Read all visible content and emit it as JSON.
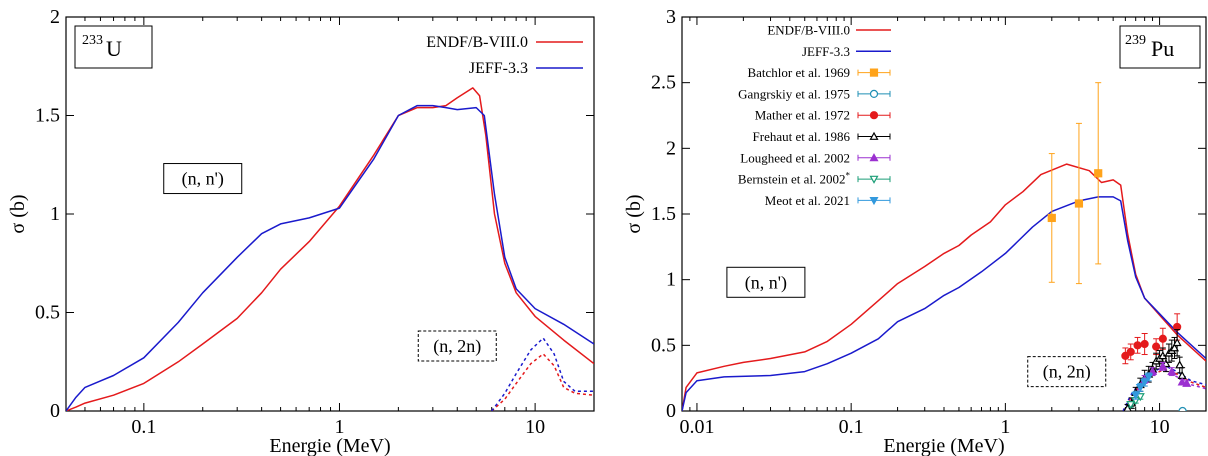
{
  "chart_data": [
    {
      "type": "line",
      "isotope": {
        "mass": "233",
        "symbol": "U"
      },
      "xlabel": "Energie (MeV)",
      "ylabel": "σ (b)",
      "xscale": "log",
      "xlim": [
        0.04,
        20
      ],
      "ylim": [
        0,
        2
      ],
      "xticks": [
        {
          "v": 0.1,
          "t": "0.1"
        },
        {
          "v": 1,
          "t": "1"
        },
        {
          "v": 10,
          "t": "10"
        }
      ],
      "yticks": [
        {
          "v": 0,
          "t": "0"
        },
        {
          "v": 0.5,
          "t": "0.5"
        },
        {
          "v": 1,
          "t": "1"
        },
        {
          "v": 1.5,
          "t": "1.5"
        },
        {
          "v": 2,
          "t": "2"
        }
      ],
      "legend_position": "top-right",
      "labels": [
        {
          "text": "(n, n')",
          "x": 0.2,
          "y": 1.18,
          "dashed": false
        },
        {
          "text": "(n, 2n)",
          "x": 4.0,
          "y": 0.33,
          "dashed": true
        }
      ],
      "series": [
        {
          "name": "ENDF/B-VIII.0",
          "color": "#e41a1c",
          "dash": false,
          "points": [
            [
              0.04,
              0
            ],
            [
              0.045,
              0.02
            ],
            [
              0.05,
              0.04
            ],
            [
              0.07,
              0.08
            ],
            [
              0.1,
              0.14
            ],
            [
              0.15,
              0.25
            ],
            [
              0.2,
              0.34
            ],
            [
              0.3,
              0.47
            ],
            [
              0.4,
              0.6
            ],
            [
              0.5,
              0.72
            ],
            [
              0.7,
              0.86
            ],
            [
              1.0,
              1.04
            ],
            [
              1.5,
              1.3
            ],
            [
              2.0,
              1.5
            ],
            [
              2.5,
              1.54
            ],
            [
              3.0,
              1.54
            ],
            [
              3.5,
              1.55
            ],
            [
              4.0,
              1.59
            ],
            [
              4.8,
              1.64
            ],
            [
              5.2,
              1.6
            ],
            [
              5.6,
              1.4
            ],
            [
              6.2,
              1.0
            ],
            [
              7.0,
              0.75
            ],
            [
              8.0,
              0.6
            ],
            [
              10.0,
              0.48
            ],
            [
              14.0,
              0.36
            ],
            [
              20.0,
              0.24
            ]
          ]
        },
        {
          "name": "JEFF-3.3",
          "color": "#1a1acc",
          "dash": false,
          "points": [
            [
              0.04,
              0
            ],
            [
              0.045,
              0.07
            ],
            [
              0.05,
              0.12
            ],
            [
              0.07,
              0.18
            ],
            [
              0.1,
              0.27
            ],
            [
              0.15,
              0.45
            ],
            [
              0.2,
              0.6
            ],
            [
              0.3,
              0.78
            ],
            [
              0.4,
              0.9
            ],
            [
              0.5,
              0.95
            ],
            [
              0.7,
              0.98
            ],
            [
              1.0,
              1.03
            ],
            [
              1.5,
              1.28
            ],
            [
              2.0,
              1.5
            ],
            [
              2.5,
              1.55
            ],
            [
              3.0,
              1.55
            ],
            [
              3.5,
              1.54
            ],
            [
              4.0,
              1.53
            ],
            [
              5.0,
              1.54
            ],
            [
              5.5,
              1.5
            ],
            [
              6.2,
              1.1
            ],
            [
              7.0,
              0.78
            ],
            [
              8.0,
              0.62
            ],
            [
              10.0,
              0.52
            ],
            [
              14.0,
              0.44
            ],
            [
              20.0,
              0.34
            ]
          ]
        },
        {
          "name": "",
          "color": "#e41a1c",
          "dash": true,
          "points": [
            [
              6.0,
              0
            ],
            [
              7.0,
              0.06
            ],
            [
              8.0,
              0.14
            ],
            [
              9.5,
              0.24
            ],
            [
              11.0,
              0.29
            ],
            [
              12.5,
              0.23
            ],
            [
              14.0,
              0.12
            ],
            [
              16.0,
              0.09
            ],
            [
              20.0,
              0.08
            ]
          ]
        },
        {
          "name": "",
          "color": "#1a1acc",
          "dash": true,
          "points": [
            [
              6.0,
              0
            ],
            [
              7.0,
              0.09
            ],
            [
              8.0,
              0.19
            ],
            [
              9.5,
              0.31
            ],
            [
              11.0,
              0.37
            ],
            [
              12.5,
              0.29
            ],
            [
              14.0,
              0.15
            ],
            [
              16.0,
              0.1
            ],
            [
              20.0,
              0.1
            ]
          ]
        }
      ]
    },
    {
      "type": "line",
      "isotope": {
        "mass": "239",
        "symbol": "Pu"
      },
      "xlabel": "Energie (MeV)",
      "ylabel": "σ (b)",
      "xscale": "log",
      "xlim": [
        0.008,
        20
      ],
      "ylim": [
        0,
        3
      ],
      "xticks": [
        {
          "v": 0.01,
          "t": "0.01"
        },
        {
          "v": 0.1,
          "t": "0.1"
        },
        {
          "v": 1,
          "t": "1"
        },
        {
          "v": 10,
          "t": "10"
        }
      ],
      "yticks": [
        {
          "v": 0,
          "t": "0"
        },
        {
          "v": 0.5,
          "t": "0.5"
        },
        {
          "v": 1,
          "t": "1"
        },
        {
          "v": 1.5,
          "t": "1.5"
        },
        {
          "v": 2,
          "t": "2"
        },
        {
          "v": 2.5,
          "t": "2.5"
        },
        {
          "v": 3,
          "t": "3"
        }
      ],
      "legend_position": "top-left",
      "labels": [
        {
          "text": "(n, n')",
          "x": 0.028,
          "y": 0.98,
          "dashed": false
        },
        {
          "text": "(n, 2n)",
          "x": 2.5,
          "y": 0.3,
          "dashed": true
        }
      ],
      "series": [
        {
          "name": "ENDF/B-VIII.0",
          "color": "#e41a1c",
          "dash": false,
          "points": [
            [
              0.008,
              0
            ],
            [
              0.0085,
              0.18
            ],
            [
              0.01,
              0.29
            ],
            [
              0.015,
              0.34
            ],
            [
              0.02,
              0.37
            ],
            [
              0.03,
              0.4
            ],
            [
              0.05,
              0.45
            ],
            [
              0.07,
              0.53
            ],
            [
              0.1,
              0.66
            ],
            [
              0.15,
              0.84
            ],
            [
              0.2,
              0.97
            ],
            [
              0.3,
              1.1
            ],
            [
              0.4,
              1.2
            ],
            [
              0.5,
              1.26
            ],
            [
              0.6,
              1.34
            ],
            [
              0.8,
              1.44
            ],
            [
              1.0,
              1.57
            ],
            [
              1.3,
              1.67
            ],
            [
              1.7,
              1.8
            ],
            [
              2.5,
              1.88
            ],
            [
              3.5,
              1.83
            ],
            [
              4.2,
              1.74
            ],
            [
              5.0,
              1.76
            ],
            [
              5.6,
              1.72
            ],
            [
              6.2,
              1.35
            ],
            [
              7.0,
              1.04
            ],
            [
              8.0,
              0.86
            ],
            [
              10.0,
              0.73
            ],
            [
              13.0,
              0.58
            ],
            [
              20.0,
              0.38
            ]
          ]
        },
        {
          "name": "JEFF-3.3",
          "color": "#1a1acc",
          "dash": false,
          "points": [
            [
              0.008,
              0
            ],
            [
              0.0085,
              0.14
            ],
            [
              0.01,
              0.23
            ],
            [
              0.015,
              0.26
            ],
            [
              0.03,
              0.27
            ],
            [
              0.05,
              0.3
            ],
            [
              0.07,
              0.36
            ],
            [
              0.1,
              0.44
            ],
            [
              0.15,
              0.55
            ],
            [
              0.2,
              0.68
            ],
            [
              0.3,
              0.78
            ],
            [
              0.4,
              0.88
            ],
            [
              0.5,
              0.94
            ],
            [
              0.7,
              1.06
            ],
            [
              1.0,
              1.2
            ],
            [
              1.5,
              1.4
            ],
            [
              2.0,
              1.52
            ],
            [
              3.0,
              1.6
            ],
            [
              4.0,
              1.63
            ],
            [
              5.0,
              1.63
            ],
            [
              5.6,
              1.6
            ],
            [
              6.2,
              1.3
            ],
            [
              7.0,
              1.02
            ],
            [
              8.0,
              0.86
            ],
            [
              10.0,
              0.74
            ],
            [
              13.0,
              0.6
            ],
            [
              20.0,
              0.4
            ]
          ]
        },
        {
          "name": "",
          "color": "#e41a1c",
          "dash": true,
          "points": [
            [
              5.8,
              0
            ],
            [
              6.5,
              0.1
            ],
            [
              7.5,
              0.2
            ],
            [
              9.0,
              0.28
            ],
            [
              11.0,
              0.32
            ],
            [
              13.0,
              0.28
            ],
            [
              16.0,
              0.22
            ],
            [
              20.0,
              0.18
            ]
          ]
        },
        {
          "name": "",
          "color": "#1a1acc",
          "dash": true,
          "points": [
            [
              5.8,
              0
            ],
            [
              6.5,
              0.12
            ],
            [
              7.5,
              0.22
            ],
            [
              9.0,
              0.3
            ],
            [
              11.0,
              0.34
            ],
            [
              13.0,
              0.3
            ],
            [
              16.0,
              0.23
            ],
            [
              20.0,
              0.2
            ]
          ]
        },
        {
          "name": "",
          "color": "#9b30d0",
          "dash": true,
          "points": [
            [
              6.0,
              0
            ],
            [
              7.0,
              0.14
            ],
            [
              8.5,
              0.26
            ],
            [
              10.5,
              0.32
            ],
            [
              13.0,
              0.26
            ],
            [
              16.0,
              0.2
            ],
            [
              20.0,
              0.17
            ]
          ]
        }
      ],
      "datasets": [
        {
          "name": "Batchlor et al. 1969",
          "color": "#ffa31a",
          "marker": "square",
          "points": [
            [
              2.0,
              1.47,
              0.49
            ],
            [
              3.0,
              1.58,
              0.61
            ],
            [
              4.0,
              1.81,
              0.69
            ]
          ]
        },
        {
          "name": "Gangrskiy et al. 1975",
          "color": "#1f8fb4",
          "marker": "circle-open",
          "points": [
            [
              14.1,
              0.0,
              0.01
            ]
          ]
        },
        {
          "name": "Mather et al. 1972",
          "color": "#e41a1c",
          "marker": "circle",
          "points": [
            [
              6.0,
              0.42,
              0.06
            ],
            [
              6.5,
              0.45,
              0.06
            ],
            [
              7.2,
              0.5,
              0.06
            ],
            [
              8.0,
              0.51,
              0.08
            ],
            [
              9.5,
              0.49,
              0.06
            ],
            [
              10.5,
              0.55,
              0.08
            ],
            [
              13.0,
              0.64,
              0.1
            ]
          ]
        },
        {
          "name": "Frehaut et al. 1986",
          "color": "#000000",
          "marker": "triangle-open",
          "points": [
            [
              6.2,
              0.02,
              0.03
            ],
            [
              6.6,
              0.06,
              0.04
            ],
            [
              7.0,
              0.14,
              0.04
            ],
            [
              7.5,
              0.2,
              0.05
            ],
            [
              8.0,
              0.25,
              0.06
            ],
            [
              8.5,
              0.28,
              0.06
            ],
            [
              9.0,
              0.32,
              0.05
            ],
            [
              9.5,
              0.38,
              0.06
            ],
            [
              10.0,
              0.4,
              0.06
            ],
            [
              10.5,
              0.42,
              0.06
            ],
            [
              11.0,
              0.36,
              0.06
            ],
            [
              11.5,
              0.44,
              0.07
            ],
            [
              12.0,
              0.46,
              0.08
            ],
            [
              12.5,
              0.48,
              0.08
            ],
            [
              13.0,
              0.52,
              0.1
            ],
            [
              13.5,
              0.35,
              0.06
            ],
            [
              14.0,
              0.27,
              0.06
            ]
          ]
        },
        {
          "name": "Lougheed et al. 2002",
          "color": "#9b30d0",
          "marker": "triangle",
          "points": [
            [
              8.0,
              0.24,
              0.03
            ],
            [
              9.0,
              0.3,
              0.03
            ],
            [
              10.5,
              0.34,
              0.03
            ],
            [
              12.0,
              0.3,
              0.03
            ],
            [
              14.0,
              0.22,
              0.02
            ],
            [
              15.0,
              0.21,
              0.02
            ]
          ]
        },
        {
          "name": "Bernstein et al. 2002",
          "name_sup": "*",
          "color": "#1b9e77",
          "marker": "triangle-down-open",
          "points": [
            [
              6.5,
              0.05,
              0.02
            ],
            [
              7.0,
              0.08,
              0.02
            ],
            [
              7.5,
              0.11,
              0.02
            ]
          ]
        },
        {
          "name": "Meot et al. 2021",
          "color": "#3399dd",
          "marker": "triangle-down",
          "points": [
            [
              7.0,
              0.12,
              0.03
            ],
            [
              7.5,
              0.18,
              0.03
            ],
            [
              8.0,
              0.22,
              0.03
            ],
            [
              8.5,
              0.26,
              0.03
            ]
          ]
        }
      ]
    }
  ]
}
